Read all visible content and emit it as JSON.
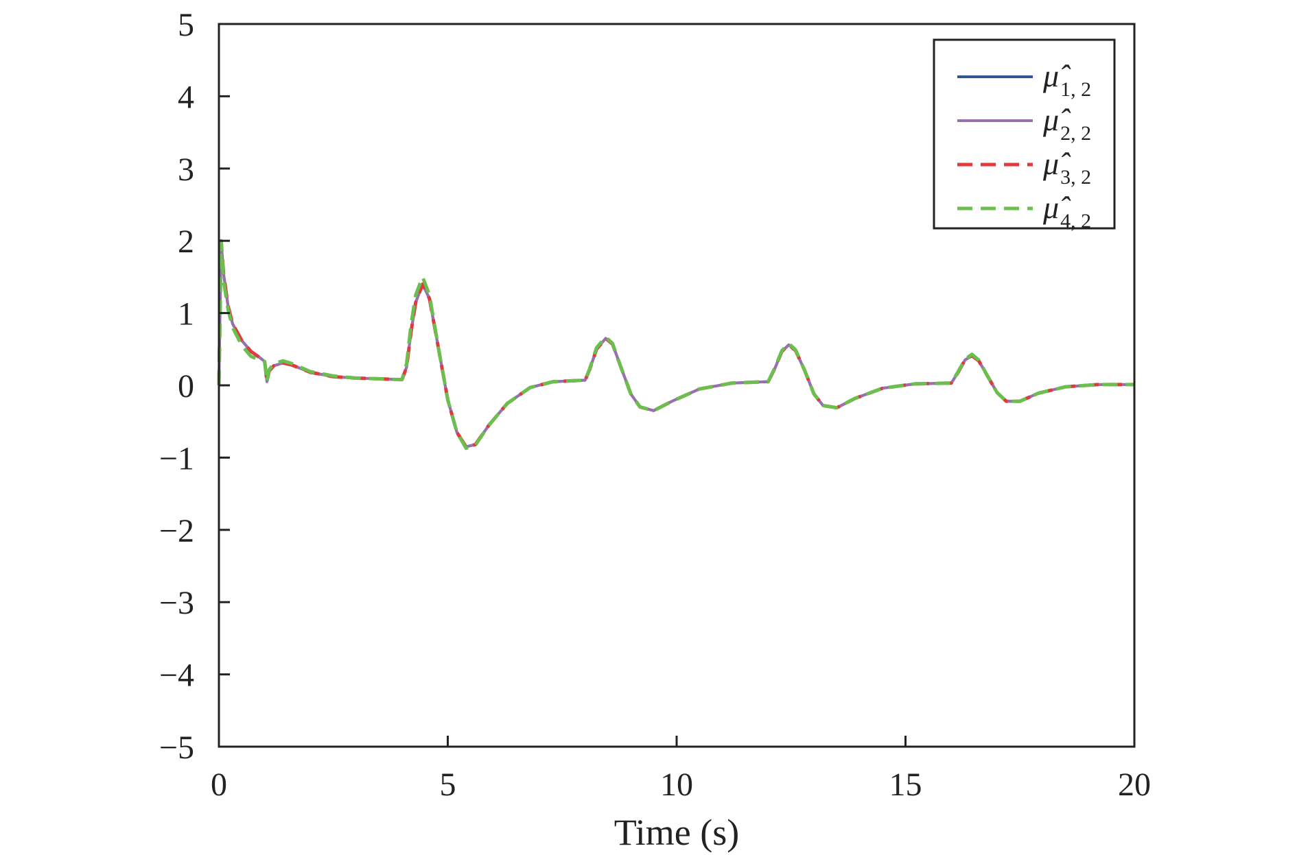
{
  "chart_data": {
    "type": "line",
    "title": "",
    "xlabel": "Time (s)",
    "ylabel": "",
    "xlim": [
      0,
      20
    ],
    "ylim": [
      -5,
      5
    ],
    "x_ticks": [
      0,
      5,
      10,
      15,
      20
    ],
    "y_ticks": [
      5,
      4,
      3,
      2,
      1,
      0,
      -1,
      -2,
      -3,
      -4,
      -5
    ],
    "x_tick_labels": [
      "0",
      "5",
      "10",
      "15",
      "20"
    ],
    "y_tick_labels": [
      "5",
      "4",
      "3",
      "2",
      "1",
      "0",
      "−1",
      "−2",
      "−3",
      "−4",
      "−5"
    ],
    "grid": false,
    "legend_position": "top-right",
    "series": [
      {
        "name": "μ̂",
        "subscript": "1, 2",
        "color": "#2d5597",
        "dash": "solid",
        "x": [
          0,
          0.05,
          0.1,
          0.2,
          0.3,
          0.5,
          0.7,
          0.9,
          1.0,
          1.05,
          1.1,
          1.2,
          1.4,
          1.6,
          2.0,
          2.5,
          3.0,
          3.5,
          3.95,
          4.0,
          4.1,
          4.2,
          4.3,
          4.45,
          4.6,
          4.8,
          5.0,
          5.2,
          5.4,
          5.6,
          5.9,
          6.3,
          6.8,
          7.3,
          7.95,
          8.0,
          8.1,
          8.25,
          8.45,
          8.6,
          8.8,
          9.0,
          9.2,
          9.5,
          9.9,
          10.5,
          11.2,
          11.95,
          12.0,
          12.15,
          12.3,
          12.45,
          12.6,
          12.8,
          13.0,
          13.2,
          13.5,
          13.9,
          14.5,
          15.2,
          15.95,
          16.0,
          16.15,
          16.3,
          16.45,
          16.6,
          16.8,
          17.0,
          17.2,
          17.5,
          17.9,
          18.5,
          19.2,
          20.0
        ],
        "values": [
          0.0,
          2.0,
          1.55,
          1.1,
          0.85,
          0.62,
          0.47,
          0.38,
          0.33,
          0.05,
          0.2,
          0.27,
          0.31,
          0.28,
          0.18,
          0.12,
          0.1,
          0.09,
          0.08,
          0.08,
          0.25,
          0.75,
          1.15,
          1.4,
          1.2,
          0.5,
          -0.2,
          -0.65,
          -0.85,
          -0.82,
          -0.55,
          -0.25,
          -0.03,
          0.05,
          0.07,
          0.07,
          0.22,
          0.5,
          0.65,
          0.57,
          0.22,
          -0.12,
          -0.3,
          -0.35,
          -0.22,
          -0.05,
          0.03,
          0.05,
          0.05,
          0.24,
          0.47,
          0.56,
          0.48,
          0.2,
          -0.12,
          -0.28,
          -0.31,
          -0.18,
          -0.04,
          0.02,
          0.03,
          0.03,
          0.18,
          0.35,
          0.41,
          0.34,
          0.12,
          -0.1,
          -0.22,
          -0.22,
          -0.11,
          -0.02,
          0.01,
          0.01
        ]
      },
      {
        "name": "μ̂",
        "subscript": "2, 2",
        "color": "#9a6fb0",
        "dash": "solid",
        "x": [
          0,
          0.05,
          0.1,
          0.2,
          0.3,
          0.5,
          0.7,
          0.9,
          1.0,
          1.05,
          1.1,
          1.2,
          1.4,
          1.6,
          2.0,
          2.5,
          3.0,
          3.5,
          3.95,
          4.0,
          4.1,
          4.2,
          4.3,
          4.45,
          4.6,
          4.8,
          5.0,
          5.2,
          5.4,
          5.6,
          5.9,
          6.3,
          6.8,
          7.3,
          7.95,
          8.0,
          8.1,
          8.25,
          8.45,
          8.6,
          8.8,
          9.0,
          9.2,
          9.5,
          9.9,
          10.5,
          11.2,
          11.95,
          12.0,
          12.15,
          12.3,
          12.45,
          12.6,
          12.8,
          13.0,
          13.2,
          13.5,
          13.9,
          14.5,
          15.2,
          15.95,
          16.0,
          16.15,
          16.3,
          16.45,
          16.6,
          16.8,
          17.0,
          17.2,
          17.5,
          17.9,
          18.5,
          19.2,
          20.0
        ],
        "values": [
          0.0,
          2.0,
          1.55,
          1.1,
          0.85,
          0.62,
          0.47,
          0.38,
          0.33,
          0.05,
          0.2,
          0.27,
          0.31,
          0.28,
          0.18,
          0.12,
          0.1,
          0.09,
          0.08,
          0.08,
          0.25,
          0.75,
          1.15,
          1.4,
          1.2,
          0.5,
          -0.2,
          -0.65,
          -0.85,
          -0.82,
          -0.55,
          -0.25,
          -0.03,
          0.05,
          0.07,
          0.07,
          0.22,
          0.5,
          0.65,
          0.57,
          0.22,
          -0.12,
          -0.3,
          -0.35,
          -0.22,
          -0.05,
          0.03,
          0.05,
          0.05,
          0.24,
          0.47,
          0.56,
          0.48,
          0.2,
          -0.12,
          -0.28,
          -0.31,
          -0.18,
          -0.04,
          0.02,
          0.03,
          0.03,
          0.18,
          0.35,
          0.41,
          0.34,
          0.12,
          -0.1,
          -0.22,
          -0.22,
          -0.11,
          -0.02,
          0.01,
          0.01
        ]
      },
      {
        "name": "μ̂",
        "subscript": "3, 2",
        "color": "#e03a3e",
        "dash": "dashed",
        "x": [
          0,
          0.05,
          0.1,
          0.2,
          0.3,
          0.5,
          0.7,
          0.9,
          1.0,
          1.05,
          1.1,
          1.2,
          1.4,
          1.6,
          2.0,
          2.5,
          3.0,
          3.5,
          3.95,
          4.0,
          4.1,
          4.2,
          4.3,
          4.45,
          4.6,
          4.8,
          5.0,
          5.2,
          5.4,
          5.6,
          5.9,
          6.3,
          6.8,
          7.3,
          7.95,
          8.0,
          8.1,
          8.25,
          8.45,
          8.6,
          8.8,
          9.0,
          9.2,
          9.5,
          9.9,
          10.5,
          11.2,
          11.95,
          12.0,
          12.15,
          12.3,
          12.45,
          12.6,
          12.8,
          13.0,
          13.2,
          13.5,
          13.9,
          14.5,
          15.2,
          15.95,
          16.0,
          16.15,
          16.3,
          16.45,
          16.6,
          16.8,
          17.0,
          17.2,
          17.5,
          17.9,
          18.5,
          19.2,
          20.0
        ],
        "values": [
          0.0,
          2.0,
          1.55,
          1.1,
          0.85,
          0.62,
          0.47,
          0.38,
          0.33,
          0.05,
          0.2,
          0.27,
          0.31,
          0.28,
          0.18,
          0.12,
          0.1,
          0.09,
          0.08,
          0.08,
          0.25,
          0.75,
          1.15,
          1.4,
          1.2,
          0.5,
          -0.2,
          -0.65,
          -0.85,
          -0.82,
          -0.55,
          -0.25,
          -0.03,
          0.05,
          0.07,
          0.07,
          0.22,
          0.5,
          0.65,
          0.57,
          0.22,
          -0.12,
          -0.3,
          -0.35,
          -0.22,
          -0.05,
          0.03,
          0.05,
          0.05,
          0.24,
          0.47,
          0.56,
          0.48,
          0.2,
          -0.12,
          -0.28,
          -0.31,
          -0.18,
          -0.04,
          0.02,
          0.03,
          0.03,
          0.18,
          0.35,
          0.41,
          0.34,
          0.12,
          -0.1,
          -0.22,
          -0.22,
          -0.11,
          -0.02,
          0.01,
          0.01
        ]
      },
      {
        "name": "μ̂",
        "subscript": "4, 2",
        "color": "#6bbf4e",
        "dash": "dashed",
        "x": [
          0,
          0.05,
          0.1,
          0.2,
          0.3,
          0.5,
          0.7,
          0.9,
          1.0,
          1.05,
          1.1,
          1.2,
          1.4,
          1.6,
          2.0,
          2.5,
          3.0,
          3.5,
          3.95,
          4.0,
          4.1,
          4.2,
          4.3,
          4.45,
          4.6,
          4.8,
          5.0,
          5.2,
          5.4,
          5.6,
          5.9,
          6.3,
          6.8,
          7.3,
          7.95,
          8.0,
          8.1,
          8.25,
          8.45,
          8.6,
          8.8,
          9.0,
          9.2,
          9.5,
          9.9,
          10.5,
          11.2,
          11.95,
          12.0,
          12.15,
          12.3,
          12.45,
          12.6,
          12.8,
          13.0,
          13.2,
          13.5,
          13.9,
          14.5,
          15.2,
          15.95,
          16.0,
          16.15,
          16.3,
          16.45,
          16.6,
          16.8,
          17.0,
          17.2,
          17.5,
          17.9,
          18.5,
          19.2,
          20.0
        ],
        "values": [
          0.0,
          2.0,
          1.45,
          1.05,
          0.8,
          0.55,
          0.4,
          0.35,
          0.33,
          0.05,
          0.22,
          0.3,
          0.34,
          0.3,
          0.19,
          0.13,
          0.1,
          0.09,
          0.08,
          0.08,
          0.3,
          0.85,
          1.25,
          1.5,
          1.25,
          0.5,
          -0.2,
          -0.65,
          -0.87,
          -0.83,
          -0.55,
          -0.25,
          -0.03,
          0.05,
          0.07,
          0.07,
          0.23,
          0.52,
          0.67,
          0.58,
          0.22,
          -0.12,
          -0.3,
          -0.35,
          -0.22,
          -0.05,
          0.03,
          0.05,
          0.05,
          0.25,
          0.48,
          0.58,
          0.49,
          0.2,
          -0.12,
          -0.28,
          -0.31,
          -0.18,
          -0.04,
          0.02,
          0.03,
          0.03,
          0.19,
          0.36,
          0.43,
          0.35,
          0.12,
          -0.1,
          -0.22,
          -0.22,
          -0.11,
          -0.02,
          0.01,
          0.01
        ]
      }
    ]
  }
}
